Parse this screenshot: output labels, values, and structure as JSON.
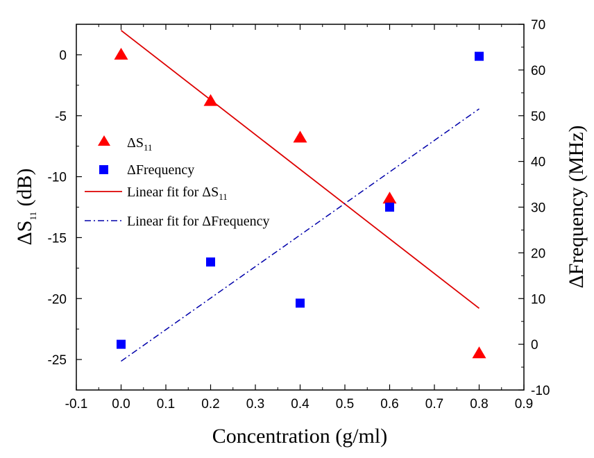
{
  "chart_data": {
    "type": "scatter",
    "xlabel": "Concentration (g/ml)",
    "ylabel_left": {
      "prefix": "ΔS",
      "subscript": "11",
      "suffix": " (dB)"
    },
    "ylabel_right": "ΔFrequency (MHz)",
    "xlim": [
      -0.1,
      0.9
    ],
    "ylim_left": [
      -27.5,
      2.5
    ],
    "ylim_right": [
      -10,
      70
    ],
    "x_ticks": [
      "-0.1",
      "0.0",
      "0.1",
      "0.2",
      "0.3",
      "0.4",
      "0.5",
      "0.6",
      "0.7",
      "0.8",
      "0.9"
    ],
    "y_left_ticks": [
      "0",
      "-5",
      "-10",
      "-15",
      "-20",
      "-25"
    ],
    "y_right_ticks": [
      "70",
      "60",
      "50",
      "40",
      "30",
      "20",
      "10",
      "0",
      "-10"
    ],
    "series": [
      {
        "name": "ΔS11",
        "legend_label": {
          "prefix": "ΔS",
          "subscript": "11"
        },
        "axis": "left",
        "marker": "triangle",
        "color": "#ff0000",
        "x": [
          0.0,
          0.2,
          0.4,
          0.6,
          0.8
        ],
        "y": [
          0.0,
          -3.8,
          -6.8,
          -11.8,
          -24.5
        ]
      },
      {
        "name": "ΔFrequency",
        "legend_label": {
          "prefix": "ΔFrequency",
          "subscript": ""
        },
        "axis": "right",
        "marker": "square",
        "color": "#0000ff",
        "x": [
          0.0,
          0.2,
          0.4,
          0.6,
          0.8
        ],
        "y": [
          0.0,
          18.0,
          9.0,
          30.0,
          63.0
        ]
      },
      {
        "name": "Linear fit for ΔS11",
        "legend_label": {
          "prefix": "Linear fit for ΔS",
          "subscript": "11"
        },
        "axis": "left",
        "type": "line",
        "style": "solid",
        "color": "#dd0000",
        "x": [
          0.0,
          0.8
        ],
        "y": [
          2.0,
          -20.8
        ]
      },
      {
        "name": "Linear fit for ΔFrequency",
        "legend_label": {
          "prefix": "Linear fit for ΔFrequency",
          "subscript": ""
        },
        "axis": "right",
        "type": "line",
        "style": "dashdot",
        "color": "#0000aa",
        "x": [
          0.0,
          0.8
        ],
        "y": [
          -3.7,
          51.5
        ]
      }
    ]
  }
}
